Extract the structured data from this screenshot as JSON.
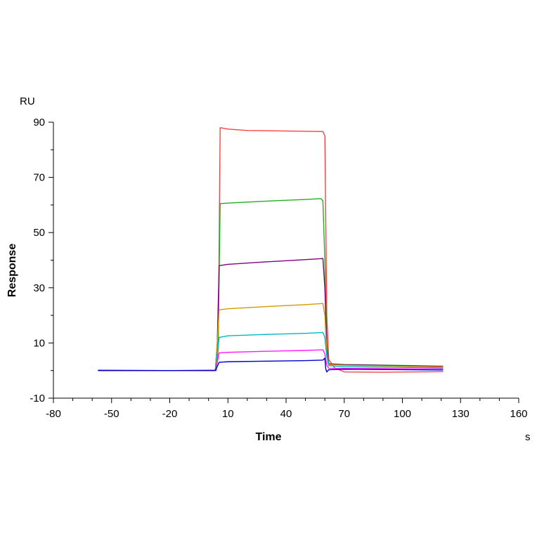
{
  "chart_data": {
    "type": "line",
    "title": "",
    "xlabel": "Time",
    "ylabel": "Response",
    "x_unit": "s",
    "y_unit": "RU",
    "xlim": [
      -80,
      160
    ],
    "ylim": [
      -10,
      90
    ],
    "x_ticks": [
      "-80",
      "-50",
      "-20",
      "10",
      "40",
      "70",
      "100",
      "130",
      "160"
    ],
    "y_ticks": [
      "-10",
      "10",
      "30",
      "50",
      "70",
      "90"
    ],
    "x_minor_step": 10,
    "y_minor_step": 10,
    "grid": false,
    "legend": "none",
    "series": [
      {
        "color": "#ff4040",
        "points": [
          [
            -57,
            0.2
          ],
          [
            -20,
            0
          ],
          [
            4,
            0.2
          ],
          [
            5,
            8
          ],
          [
            6,
            88
          ],
          [
            10,
            87.5
          ],
          [
            20,
            87
          ],
          [
            40,
            86.8
          ],
          [
            59,
            86.6
          ],
          [
            60,
            85
          ],
          [
            61,
            20
          ],
          [
            62,
            4
          ],
          [
            65,
            1
          ],
          [
            70,
            -0.5
          ],
          [
            90,
            -0.6
          ],
          [
            121,
            -0.4
          ]
        ]
      },
      {
        "color": "#20b020",
        "points": [
          [
            -57,
            0
          ],
          [
            4,
            0
          ],
          [
            5,
            10
          ],
          [
            6,
            60.5
          ],
          [
            10,
            60.7
          ],
          [
            30,
            61.4
          ],
          [
            50,
            62
          ],
          [
            58,
            62.3
          ],
          [
            59,
            61.5
          ],
          [
            60,
            40
          ],
          [
            61,
            10
          ],
          [
            62,
            2.5
          ],
          [
            70,
            2.2
          ],
          [
            121,
            1.6
          ]
        ]
      },
      {
        "color": "#800080",
        "points": [
          [
            -57,
            0
          ],
          [
            3.5,
            0
          ],
          [
            4.5,
            10
          ],
          [
            5.5,
            38
          ],
          [
            10,
            38.5
          ],
          [
            30,
            39.4
          ],
          [
            50,
            40.2
          ],
          [
            59,
            40.6
          ],
          [
            60,
            30
          ],
          [
            61,
            8
          ],
          [
            62,
            2.4
          ],
          [
            70,
            2.1
          ],
          [
            121,
            1.5
          ]
        ]
      },
      {
        "color": "#d49a00",
        "points": [
          [
            -57,
            0
          ],
          [
            3.5,
            0
          ],
          [
            4.5,
            10
          ],
          [
            5.5,
            22
          ],
          [
            10,
            22.4
          ],
          [
            30,
            23.2
          ],
          [
            50,
            23.9
          ],
          [
            59,
            24.3
          ],
          [
            60,
            20
          ],
          [
            61,
            6
          ],
          [
            62,
            2.2
          ],
          [
            70,
            1.9
          ],
          [
            121,
            1.3
          ]
        ]
      },
      {
        "color": "#00b8c8",
        "points": [
          [
            -57,
            0
          ],
          [
            3.5,
            0
          ],
          [
            4.5,
            6
          ],
          [
            5.5,
            12
          ],
          [
            10,
            12.6
          ],
          [
            30,
            13.1
          ],
          [
            50,
            13.5
          ],
          [
            59,
            13.8
          ],
          [
            60,
            12
          ],
          [
            61,
            5
          ],
          [
            62,
            1.8
          ],
          [
            70,
            1.4
          ],
          [
            121,
            1.0
          ]
        ]
      },
      {
        "color": "#ff20ff",
        "points": [
          [
            -57,
            0
          ],
          [
            3.5,
            0
          ],
          [
            4.5,
            3
          ],
          [
            5.5,
            6.4
          ],
          [
            10,
            6.6
          ],
          [
            30,
            7
          ],
          [
            50,
            7.3
          ],
          [
            59,
            7.5
          ],
          [
            60,
            6
          ],
          [
            61,
            2
          ],
          [
            62,
            0.8
          ],
          [
            70,
            0.8
          ],
          [
            121,
            0.6
          ]
        ]
      },
      {
        "color": "#0000d0",
        "points": [
          [
            -57,
            0
          ],
          [
            3.5,
            0
          ],
          [
            4.5,
            1.5
          ],
          [
            5.5,
            3
          ],
          [
            10,
            3.2
          ],
          [
            30,
            3.4
          ],
          [
            50,
            3.6
          ],
          [
            59,
            3.8
          ],
          [
            60,
            4.5
          ],
          [
            60.5,
            0.5
          ],
          [
            61,
            -0.5
          ],
          [
            62,
            0.3
          ],
          [
            70,
            0.5
          ],
          [
            121,
            0.2
          ]
        ]
      }
    ]
  }
}
